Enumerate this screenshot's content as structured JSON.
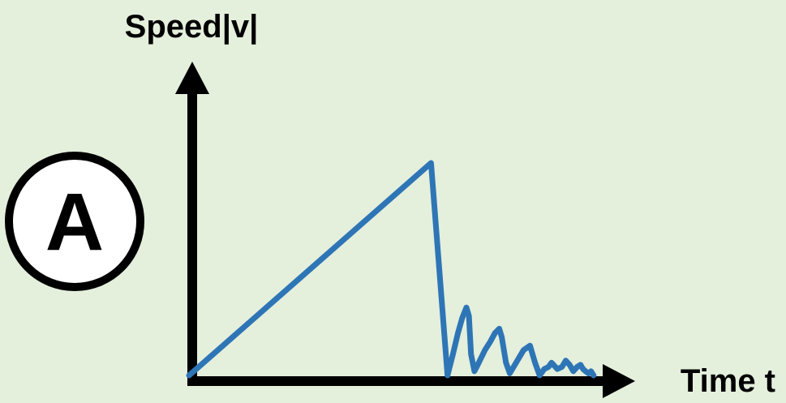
{
  "badge": {
    "label": "A"
  },
  "chart_data": {
    "type": "line",
    "title": "",
    "xlabel": "Time t",
    "ylabel": "Speed|v|",
    "xlim": [
      0,
      100
    ],
    "ylim": [
      0,
      100
    ],
    "grid": false,
    "legend": "none",
    "series": [
      {
        "color": "#2e75b6",
        "x": [
          0,
          57.5,
          61.4,
          62.7,
          63.9,
          64.9,
          65.9,
          66.5,
          67.0,
          67.8,
          68.6,
          70.3,
          71.6,
          72.7,
          73.7,
          74.3,
          75.3,
          76.2,
          76.8,
          78.0,
          79.5,
          81.0,
          82.2,
          83.3,
          84.4,
          85.4,
          86.1,
          87.5,
          88.6,
          89.5,
          90.4,
          91.3,
          92.2,
          93.0,
          93.6,
          94.2,
          94.9,
          95.5,
          96.1
        ],
        "y": [
          0,
          100,
          0,
          10,
          20,
          27,
          32,
          28,
          10,
          2,
          5,
          12,
          16,
          20,
          22,
          18,
          6,
          1,
          3,
          7,
          12,
          14,
          6,
          0,
          3,
          4,
          6,
          3,
          4,
          7,
          5,
          2,
          4,
          5,
          3,
          2,
          1,
          2,
          0
        ]
      }
    ],
    "arrows": [
      "y-axis-up",
      "x-axis-right"
    ]
  },
  "colors": {
    "background": "#e4efdc",
    "axis": "#000000",
    "line": "#2e75b6"
  }
}
